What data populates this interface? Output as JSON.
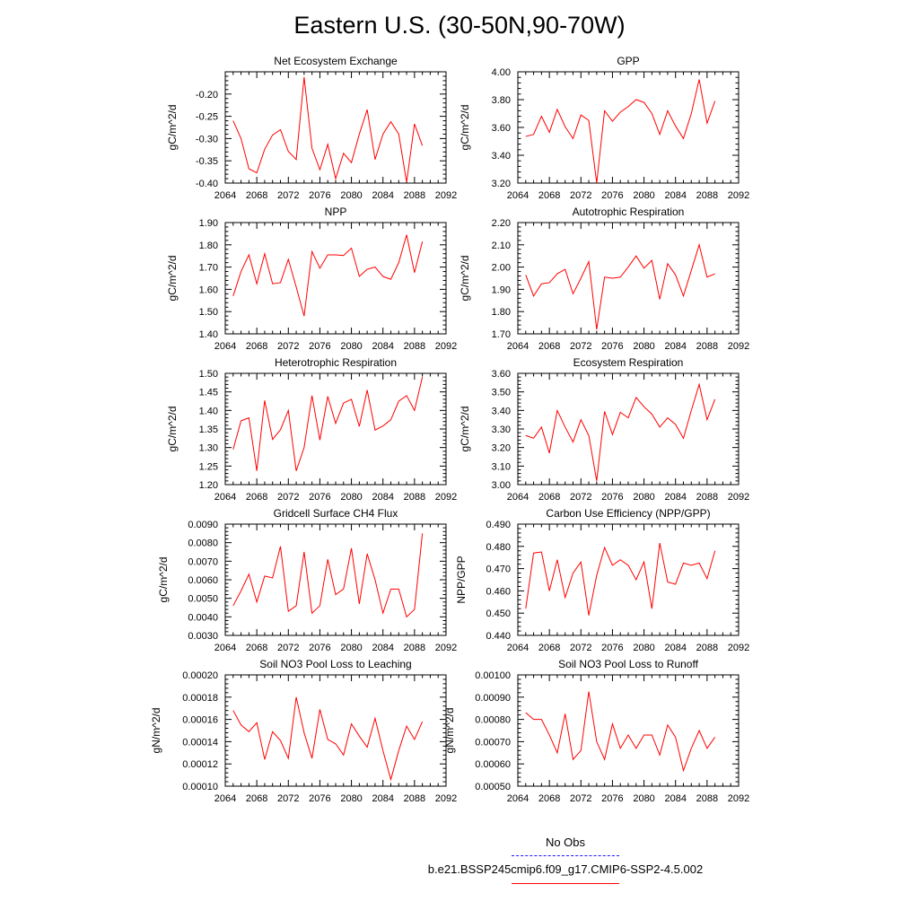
{
  "page_title": "Eastern U.S. (30-50N,90-70W)",
  "legend": {
    "obs_label": "No Obs",
    "case_label": "b.e21.BSSP245cmip6.f09_g17.CMIP6-SSP2-4.5.002",
    "obs_color": "#1a1aff",
    "case_color": "#ff0000"
  },
  "chart_data": [
    {
      "type": "line",
      "title": "Net Ecosystem Exchange",
      "ylabel": "gC/m^2/d",
      "xlim": [
        2064,
        2092
      ],
      "ylim": [
        -0.4,
        -0.15
      ],
      "xticks": [
        "2064",
        "2068",
        "2072",
        "2076",
        "2080",
        "2084",
        "2088",
        "2092"
      ],
      "yticks": [
        "-0.40",
        "-0.35",
        "-0.30",
        "-0.25",
        "-0.20"
      ],
      "x": [
        2065,
        2066,
        2067,
        2068,
        2069,
        2070,
        2071,
        2072,
        2073,
        2074,
        2075,
        2076,
        2077,
        2078,
        2079,
        2080,
        2081,
        2082,
        2083,
        2084,
        2085,
        2086,
        2087,
        2088,
        2089
      ],
      "series": [
        {
          "values": [
            -0.26,
            -0.3,
            -0.368,
            -0.377,
            -0.324,
            -0.292,
            -0.28,
            -0.329,
            -0.347,
            -0.162,
            -0.322,
            -0.37,
            -0.313,
            -0.39,
            -0.333,
            -0.354,
            -0.29,
            -0.235,
            -0.347,
            -0.29,
            -0.262,
            -0.29,
            -0.398,
            -0.267,
            -0.316
          ]
        }
      ]
    },
    {
      "type": "line",
      "title": "GPP",
      "ylabel": "gC/m^2/d",
      "xlim": [
        2064,
        2092
      ],
      "ylim": [
        3.2,
        4.0
      ],
      "xticks": [
        "2064",
        "2068",
        "2072",
        "2076",
        "2080",
        "2084",
        "2088",
        "2092"
      ],
      "yticks": [
        "3.20",
        "3.40",
        "3.60",
        "3.80",
        "4.00"
      ],
      "x": [
        2065,
        2066,
        2067,
        2068,
        2069,
        2070,
        2071,
        2072,
        2073,
        2074,
        2075,
        2076,
        2077,
        2078,
        2079,
        2080,
        2081,
        2082,
        2083,
        2084,
        2085,
        2086,
        2087,
        2088,
        2089
      ],
      "series": [
        {
          "values": [
            3.535,
            3.55,
            3.68,
            3.565,
            3.73,
            3.605,
            3.52,
            3.69,
            3.65,
            3.2,
            3.72,
            3.645,
            3.71,
            3.75,
            3.8,
            3.78,
            3.7,
            3.55,
            3.72,
            3.61,
            3.52,
            3.7,
            3.945,
            3.63,
            3.79
          ]
        }
      ]
    },
    {
      "type": "line",
      "title": "NPP",
      "ylabel": "gC/m^2/d",
      "xlim": [
        2064,
        2092
      ],
      "ylim": [
        1.4,
        1.9
      ],
      "xticks": [
        "2064",
        "2068",
        "2072",
        "2076",
        "2080",
        "2084",
        "2088",
        "2092"
      ],
      "yticks": [
        "1.40",
        "1.50",
        "1.60",
        "1.70",
        "1.80",
        "1.90"
      ],
      "x": [
        2065,
        2066,
        2067,
        2068,
        2069,
        2070,
        2071,
        2072,
        2073,
        2074,
        2075,
        2076,
        2077,
        2078,
        2079,
        2080,
        2081,
        2082,
        2083,
        2084,
        2085,
        2086,
        2087,
        2088,
        2089
      ],
      "series": [
        {
          "values": [
            1.57,
            1.68,
            1.755,
            1.625,
            1.76,
            1.625,
            1.63,
            1.735,
            1.61,
            1.48,
            1.77,
            1.695,
            1.755,
            1.755,
            1.752,
            1.785,
            1.658,
            1.69,
            1.7,
            1.658,
            1.645,
            1.72,
            1.845,
            1.675,
            1.815
          ]
        }
      ]
    },
    {
      "type": "line",
      "title": "Autotrophic Respiration",
      "ylabel": "gC/m^2/d",
      "xlim": [
        2064,
        2092
      ],
      "ylim": [
        1.7,
        2.2
      ],
      "xticks": [
        "2064",
        "2068",
        "2072",
        "2076",
        "2080",
        "2084",
        "2088",
        "2092"
      ],
      "yticks": [
        "1.70",
        "1.80",
        "1.90",
        "2.00",
        "2.10",
        "2.20"
      ],
      "x": [
        2065,
        2066,
        2067,
        2068,
        2069,
        2070,
        2071,
        2072,
        2073,
        2074,
        2075,
        2076,
        2077,
        2078,
        2079,
        2080,
        2081,
        2082,
        2083,
        2084,
        2085,
        2086,
        2087,
        2088,
        2089
      ],
      "series": [
        {
          "values": [
            1.965,
            1.87,
            1.925,
            1.93,
            1.97,
            1.99,
            1.88,
            1.95,
            2.025,
            1.72,
            1.955,
            1.95,
            1.955,
            2.0,
            2.05,
            1.995,
            2.03,
            1.855,
            2.015,
            1.965,
            1.87,
            1.985,
            2.1,
            1.955,
            1.97
          ]
        }
      ]
    },
    {
      "type": "line",
      "title": "Heterotrophic Respiration",
      "ylabel": "gC/m^2/d",
      "xlim": [
        2064,
        2092
      ],
      "ylim": [
        1.2,
        1.5
      ],
      "xticks": [
        "2064",
        "2068",
        "2072",
        "2076",
        "2080",
        "2084",
        "2088",
        "2092"
      ],
      "yticks": [
        "1.20",
        "1.25",
        "1.30",
        "1.35",
        "1.40",
        "1.45",
        "1.50"
      ],
      "x": [
        2065,
        2066,
        2067,
        2068,
        2069,
        2070,
        2071,
        2072,
        2073,
        2074,
        2075,
        2076,
        2077,
        2078,
        2079,
        2080,
        2081,
        2082,
        2083,
        2084,
        2085,
        2086,
        2087,
        2088,
        2089
      ],
      "series": [
        {
          "values": [
            1.295,
            1.372,
            1.38,
            1.237,
            1.427,
            1.322,
            1.348,
            1.4,
            1.237,
            1.3,
            1.44,
            1.32,
            1.438,
            1.365,
            1.42,
            1.43,
            1.357,
            1.455,
            1.347,
            1.358,
            1.375,
            1.425,
            1.44,
            1.4,
            1.49
          ]
        }
      ]
    },
    {
      "type": "line",
      "title": "Ecosystem Respiration",
      "ylabel": "gC/m^2/d",
      "xlim": [
        2064,
        2092
      ],
      "ylim": [
        3.0,
        3.6
      ],
      "xticks": [
        "2064",
        "2068",
        "2072",
        "2076",
        "2080",
        "2084",
        "2088",
        "2092"
      ],
      "yticks": [
        "3.00",
        "3.10",
        "3.20",
        "3.30",
        "3.40",
        "3.50",
        "3.60"
      ],
      "x": [
        2065,
        2066,
        2067,
        2068,
        2069,
        2070,
        2071,
        2072,
        2073,
        2074,
        2075,
        2076,
        2077,
        2078,
        2079,
        2080,
        2081,
        2082,
        2083,
        2084,
        2085,
        2086,
        2087,
        2088,
        2089
      ],
      "series": [
        {
          "values": [
            3.265,
            3.25,
            3.31,
            3.17,
            3.4,
            3.31,
            3.23,
            3.35,
            3.265,
            3.02,
            3.395,
            3.27,
            3.39,
            3.36,
            3.47,
            3.42,
            3.38,
            3.31,
            3.36,
            3.325,
            3.25,
            3.4,
            3.54,
            3.35,
            3.46
          ]
        }
      ]
    },
    {
      "type": "line",
      "title": "Gridcell Surface CH4 Flux",
      "ylabel": "gC/m^2/d",
      "xlim": [
        2064,
        2092
      ],
      "ylim": [
        0.003,
        0.009
      ],
      "xticks": [
        "2064",
        "2068",
        "2072",
        "2076",
        "2080",
        "2084",
        "2088",
        "2092"
      ],
      "yticks": [
        "0.0030",
        "0.0040",
        "0.0050",
        "0.0060",
        "0.0070",
        "0.0080",
        "0.0090"
      ],
      "x": [
        2065,
        2066,
        2067,
        2068,
        2069,
        2070,
        2071,
        2072,
        2073,
        2074,
        2075,
        2076,
        2077,
        2078,
        2079,
        2080,
        2081,
        2082,
        2083,
        2084,
        2085,
        2086,
        2087,
        2088,
        2089
      ],
      "series": [
        {
          "values": [
            0.0046,
            0.0054,
            0.0063,
            0.0048,
            0.0062,
            0.0061,
            0.0078,
            0.0043,
            0.0046,
            0.0075,
            0.0042,
            0.0046,
            0.0071,
            0.0052,
            0.0055,
            0.0077,
            0.0047,
            0.0074,
            0.006,
            0.0042,
            0.0055,
            0.0055,
            0.004,
            0.0044,
            0.0085
          ]
        }
      ]
    },
    {
      "type": "line",
      "title": "Carbon Use Efficiency (NPP/GPP)",
      "ylabel": "NPP/GPP",
      "xlim": [
        2064,
        2092
      ],
      "ylim": [
        0.44,
        0.49
      ],
      "xticks": [
        "2064",
        "2068",
        "2072",
        "2076",
        "2080",
        "2084",
        "2088",
        "2092"
      ],
      "yticks": [
        "0.440",
        "0.450",
        "0.460",
        "0.470",
        "0.480",
        "0.490"
      ],
      "x": [
        2065,
        2066,
        2067,
        2068,
        2069,
        2070,
        2071,
        2072,
        2073,
        2074,
        2075,
        2076,
        2077,
        2078,
        2079,
        2080,
        2081,
        2082,
        2083,
        2084,
        2085,
        2086,
        2087,
        2088,
        2089
      ],
      "series": [
        {
          "values": [
            0.452,
            0.477,
            0.4775,
            0.46,
            0.474,
            0.457,
            0.468,
            0.473,
            0.449,
            0.467,
            0.4795,
            0.4715,
            0.474,
            0.4715,
            0.465,
            0.473,
            0.452,
            0.4815,
            0.464,
            0.463,
            0.4725,
            0.4715,
            0.4725,
            0.4655,
            0.478
          ]
        }
      ]
    },
    {
      "type": "line",
      "title": "Soil NO3 Pool Loss to Leaching",
      "ylabel": "gN/m^2/d",
      "xlim": [
        2064,
        2092
      ],
      "ylim": [
        0.0001,
        0.0002
      ],
      "xticks": [
        "2064",
        "2068",
        "2072",
        "2076",
        "2080",
        "2084",
        "2088",
        "2092"
      ],
      "yticks": [
        "0.00010",
        "0.00012",
        "0.00014",
        "0.00016",
        "0.00018",
        "0.00020"
      ],
      "x": [
        2065,
        2066,
        2067,
        2068,
        2069,
        2070,
        2071,
        2072,
        2073,
        2074,
        2075,
        2076,
        2077,
        2078,
        2079,
        2080,
        2081,
        2082,
        2083,
        2084,
        2085,
        2086,
        2087,
        2088,
        2089
      ],
      "series": [
        {
          "values": [
            0.000168,
            0.000155,
            0.000149,
            0.000157,
            0.000124,
            0.000149,
            0.000141,
            0.000125,
            0.00018,
            0.000148,
            0.000125,
            0.000169,
            0.000142,
            0.000138,
            0.000128,
            0.000156,
            0.000145,
            0.000135,
            0.000161,
            0.000132,
            0.000106,
            0.000132,
            0.000154,
            0.000142,
            0.000158
          ]
        }
      ]
    },
    {
      "type": "line",
      "title": "Soil NO3 Pool Loss to Runoff",
      "ylabel": "gN/m^2/d",
      "xlim": [
        2064,
        2092
      ],
      "ylim": [
        0.0005,
        0.001
      ],
      "xticks": [
        "2064",
        "2068",
        "2072",
        "2076",
        "2080",
        "2084",
        "2088",
        "2092"
      ],
      "yticks": [
        "0.00050",
        "0.00060",
        "0.00070",
        "0.00080",
        "0.00090",
        "0.00100"
      ],
      "x": [
        2065,
        2066,
        2067,
        2068,
        2069,
        2070,
        2071,
        2072,
        2073,
        2074,
        2075,
        2076,
        2077,
        2078,
        2079,
        2080,
        2081,
        2082,
        2083,
        2084,
        2085,
        2086,
        2087,
        2088,
        2089
      ],
      "series": [
        {
          "values": [
            0.00083,
            0.0008,
            0.0008,
            0.00073,
            0.00065,
            0.000825,
            0.00062,
            0.00066,
            0.000925,
            0.0007,
            0.00062,
            0.00078,
            0.00067,
            0.00073,
            0.00067,
            0.00073,
            0.00073,
            0.00064,
            0.000775,
            0.00072,
            0.00057,
            0.00067,
            0.00075,
            0.00067,
            0.00072
          ]
        }
      ]
    }
  ]
}
